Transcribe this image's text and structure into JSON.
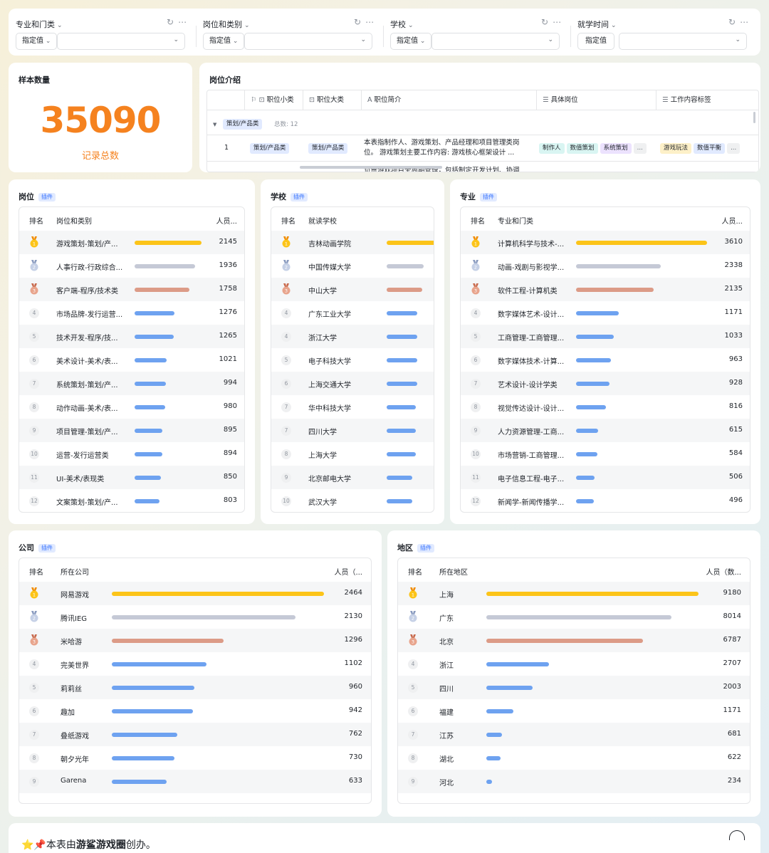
{
  "filters": [
    {
      "label": "专业和门类",
      "mode": "指定值",
      "value": ""
    },
    {
      "label": "岗位和类别",
      "mode": "指定值",
      "value": ""
    },
    {
      "label": "学校",
      "mode": "指定值",
      "value": ""
    },
    {
      "label": "就学时间",
      "mode": "指定值",
      "value": ""
    }
  ],
  "sample": {
    "title": "样本数量",
    "number": "35090",
    "caption": "记录总数"
  },
  "job_intro": {
    "title": "岗位介绍",
    "columns": [
      "职位小类",
      "职位大类",
      "职位简介",
      "具体岗位",
      "工作内容标签"
    ],
    "group_label": "策划/产品类",
    "group_count": "总数: 12",
    "row": {
      "index": "1",
      "sub": "策划/产品类",
      "major": "策划/产品类",
      "intro_line1": "本表指制作人、游戏策划、产品经理和项目管理类岗",
      "intro_line2": "位。 游戏策划主要工作内容:  游戏核心框架设计 ...",
      "next_line": "负责游戏项目全周期管理，包括制定开发计划、协调",
      "positions": [
        "制作人",
        "数值策划",
        "系统策划",
        "..."
      ],
      "tags": [
        "游戏玩法",
        "数值平衡",
        "..."
      ]
    }
  },
  "plugin_tag": "插件",
  "rankings": {
    "job": {
      "title": "岗位",
      "headers": [
        "排名",
        "岗位和类别",
        "人员..."
      ],
      "rows": [
        {
          "rank": "1",
          "name": "游戏策划-策划/产...",
          "value": "2145"
        },
        {
          "rank": "2",
          "name": "人事行政-行政综合...",
          "value": "1936"
        },
        {
          "rank": "3",
          "name": "客户端-程序/技术类",
          "value": "1758"
        },
        {
          "rank": "4",
          "name": "市场品牌-发行运营...",
          "value": "1276"
        },
        {
          "rank": "5",
          "name": "技术开发-程序/技...",
          "value": "1265"
        },
        {
          "rank": "6",
          "name": "美术设计-美术/表...",
          "value": "1021"
        },
        {
          "rank": "7",
          "name": "系统策划-策划/产...",
          "value": "994"
        },
        {
          "rank": "8",
          "name": "动作动画-美术/表...",
          "value": "980"
        },
        {
          "rank": "9",
          "name": "项目管理-策划/产...",
          "value": "895"
        },
        {
          "rank": "10",
          "name": "运营-发行运营类",
          "value": "894"
        },
        {
          "rank": "11",
          "name": "UI-美术/表现类",
          "value": "850"
        },
        {
          "rank": "12",
          "name": "文案策划-策划/产...",
          "value": "803"
        }
      ]
    },
    "school": {
      "title": "学校",
      "headers": [
        "排名",
        "就读学校",
        ""
      ],
      "rows": [
        {
          "rank": "1",
          "name": "吉林动画学院"
        },
        {
          "rank": "2",
          "name": "中国传媒大学"
        },
        {
          "rank": "3",
          "name": "中山大学"
        },
        {
          "rank": "4",
          "name": "广东工业大学"
        },
        {
          "rank": "4",
          "name": "浙江大学"
        },
        {
          "rank": "5",
          "name": "电子科技大学"
        },
        {
          "rank": "6",
          "name": "上海交通大学"
        },
        {
          "rank": "7",
          "name": "华中科技大学"
        },
        {
          "rank": "7",
          "name": "四川大学"
        },
        {
          "rank": "8",
          "name": "上海大学"
        },
        {
          "rank": "9",
          "name": "北京邮电大学"
        },
        {
          "rank": "10",
          "name": "武汉大学"
        }
      ]
    },
    "major": {
      "title": "专业",
      "headers": [
        "排名",
        "专业和门类",
        "人员..."
      ],
      "rows": [
        {
          "rank": "1",
          "name": "计算机科学与技术-...",
          "value": "3610"
        },
        {
          "rank": "2",
          "name": "动画-戏剧与影视学...",
          "value": "2338"
        },
        {
          "rank": "3",
          "name": "软件工程-计算机类",
          "value": "2135"
        },
        {
          "rank": "4",
          "name": "数字媒体艺术-设计...",
          "value": "1171"
        },
        {
          "rank": "5",
          "name": "工商管理-工商管理...",
          "value": "1033"
        },
        {
          "rank": "6",
          "name": "数字媒体技术-计算...",
          "value": "963"
        },
        {
          "rank": "7",
          "name": "艺术设计-设计学类",
          "value": "928"
        },
        {
          "rank": "8",
          "name": "视觉传达设计-设计...",
          "value": "816"
        },
        {
          "rank": "9",
          "name": "人力资源管理-工商...",
          "value": "615"
        },
        {
          "rank": "10",
          "name": "市场营销-工商管理...",
          "value": "584"
        },
        {
          "rank": "11",
          "name": "电子信息工程-电子...",
          "value": "506"
        },
        {
          "rank": "12",
          "name": "新闻学-新闻传播学...",
          "value": "496"
        }
      ]
    },
    "company": {
      "title": "公司",
      "headers": [
        "排名",
        "所在公司",
        "人员（..."
      ],
      "rows": [
        {
          "rank": "1",
          "name": "网易游戏",
          "value": "2464"
        },
        {
          "rank": "2",
          "name": "腾讯IEG",
          "value": "2130"
        },
        {
          "rank": "3",
          "name": "米哈游",
          "value": "1296"
        },
        {
          "rank": "4",
          "name": "完美世界",
          "value": "1102"
        },
        {
          "rank": "5",
          "name": "莉莉丝",
          "value": "960"
        },
        {
          "rank": "6",
          "name": "趣加",
          "value": "942"
        },
        {
          "rank": "7",
          "name": "叠纸游戏",
          "value": "762"
        },
        {
          "rank": "8",
          "name": "朝夕光年",
          "value": "730"
        },
        {
          "rank": "9",
          "name": "Garena",
          "value": "633"
        }
      ]
    },
    "region": {
      "title": "地区",
      "headers": [
        "排名",
        "所在地区",
        "人员（数..."
      ],
      "rows": [
        {
          "rank": "1",
          "name": "上海",
          "value": "9180"
        },
        {
          "rank": "2",
          "name": "广东",
          "value": "8014"
        },
        {
          "rank": "3",
          "name": "北京",
          "value": "6787"
        },
        {
          "rank": "4",
          "name": "浙江",
          "value": "2707"
        },
        {
          "rank": "5",
          "name": "四川",
          "value": "2003"
        },
        {
          "rank": "6",
          "name": "福建",
          "value": "1171"
        },
        {
          "rank": "7",
          "name": "江苏",
          "value": "681"
        },
        {
          "rank": "8",
          "name": "湖北",
          "value": "622"
        },
        {
          "rank": "9",
          "name": "河北",
          "value": "234"
        }
      ]
    }
  },
  "footer_note": {
    "prefix": "⭐📌本表由",
    "brand": "游鲨游戏圈",
    "suffix": "创办。"
  },
  "colors": {
    "accent_orange": "#f5821f",
    "gold": "#fcc419",
    "silver": "#c5c9d6",
    "bronze": "#dc9b87",
    "bar_blue": "#6ea2f0"
  }
}
